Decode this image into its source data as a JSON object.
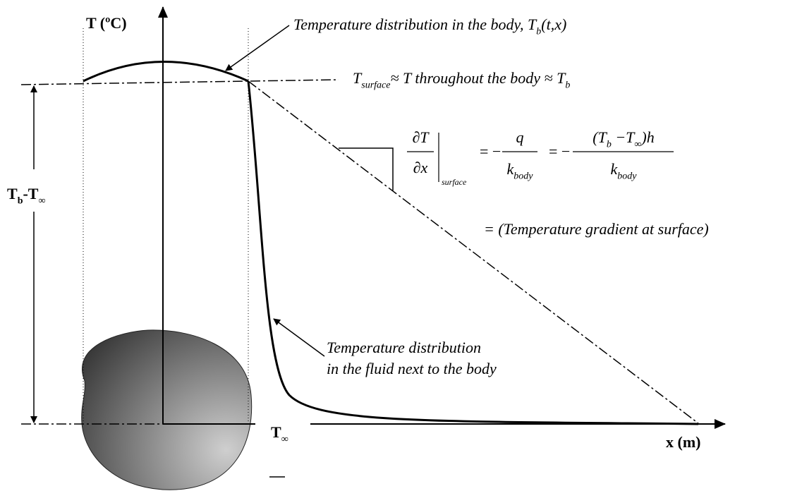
{
  "axis": {
    "y_label": "T (ºC)",
    "x_label": "x (m)",
    "t_inf": [
      {
        "t": "T"
      },
      {
        "sub": "∞"
      }
    ]
  },
  "labels": {
    "body": [
      {
        "t": "Temperature distribution in the body, T"
      },
      {
        "sub": "b"
      },
      {
        "t": "(t,x)"
      }
    ],
    "surface": [
      {
        "t": "T"
      },
      {
        "sub": "surface"
      },
      {
        "t": "≈  T throughout the body ≈ T"
      },
      {
        "sub": "b"
      }
    ],
    "delta": [
      {
        "t": "T"
      },
      {
        "sub": "b"
      },
      {
        "t": "-T"
      },
      {
        "sub": "∞"
      }
    ],
    "fluid": [
      "Temperature distribution",
      "in the fluid next to the body"
    ],
    "gradient": "= (Temperature gradient at surface)"
  },
  "equation": {
    "lhs_num": "∂T",
    "lhs_den": "∂x",
    "lhs_sub": "surface",
    "eq1": "= −",
    "q_num": "q",
    "q_den": [
      {
        "t": "k"
      },
      {
        "sub": "body"
      }
    ],
    "eq2": "= −",
    "num": [
      {
        "t": "(T"
      },
      {
        "sub": "b"
      },
      {
        "t": " −T"
      },
      {
        "sub": "∞"
      },
      {
        "t": ")h"
      }
    ],
    "den": [
      {
        "t": "k"
      },
      {
        "sub": "body"
      }
    ]
  }
}
